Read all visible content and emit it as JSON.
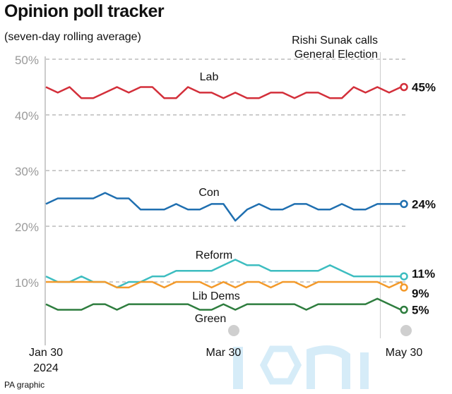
{
  "header": {
    "title": "Opinion poll tracker",
    "subtitle": "(seven-day rolling average)",
    "credit": "PA graphic"
  },
  "chart_data": {
    "type": "line",
    "title": "Opinion poll tracker",
    "subtitle": "(seven-day rolling average)",
    "ylim": [
      0,
      50
    ],
    "yticks": [
      "50%",
      "40%",
      "30%",
      "20%",
      "10%"
    ],
    "ytick_values": [
      50,
      40,
      30,
      20,
      10
    ],
    "xticks": [
      {
        "label": "Jan 30",
        "sublabel": "2024",
        "date": "2024-01-30"
      },
      {
        "label": "Mar 30",
        "date": "2024-03-30"
      },
      {
        "label": "May 30",
        "date": "2024-05-30"
      }
    ],
    "grid": true,
    "annotation": {
      "date": "2024-05-22",
      "text_line1": "Rishi Sunak calls",
      "text_line2": "General Election"
    },
    "x": [
      "2024-01-30",
      "2024-02-03",
      "2024-02-07",
      "2024-02-11",
      "2024-02-15",
      "2024-02-19",
      "2024-02-23",
      "2024-02-27",
      "2024-03-02",
      "2024-03-06",
      "2024-03-10",
      "2024-03-14",
      "2024-03-18",
      "2024-03-22",
      "2024-03-26",
      "2024-03-30",
      "2024-04-03",
      "2024-04-07",
      "2024-04-11",
      "2024-04-15",
      "2024-04-19",
      "2024-04-23",
      "2024-04-27",
      "2024-05-01",
      "2024-05-05",
      "2024-05-09",
      "2024-05-13",
      "2024-05-17",
      "2024-05-21",
      "2024-05-25",
      "2024-05-29",
      "2024-05-30"
    ],
    "series": [
      {
        "name": "Lab",
        "end_label": "45%",
        "color": "#d32f3a",
        "values": [
          45,
          44,
          45,
          43,
          43,
          44,
          45,
          44,
          45,
          45,
          43,
          43,
          45,
          44,
          44,
          43,
          44,
          43,
          43,
          44,
          44,
          43,
          44,
          44,
          43,
          43,
          45,
          44,
          45,
          44,
          45,
          45
        ]
      },
      {
        "name": "Con",
        "end_label": "24%",
        "color": "#1f6fb0",
        "values": [
          24,
          25,
          25,
          25,
          25,
          26,
          25,
          25,
          23,
          23,
          23,
          24,
          23,
          23,
          24,
          24,
          21,
          23,
          24,
          23,
          23,
          24,
          24,
          23,
          23,
          24,
          23,
          23,
          24,
          24,
          24,
          24
        ]
      },
      {
        "name": "Reform",
        "end_label": "11%",
        "color": "#3dbdc0",
        "values": [
          11,
          10,
          10,
          11,
          10,
          10,
          9,
          10,
          10,
          11,
          11,
          12,
          12,
          12,
          12,
          13,
          14,
          13,
          13,
          12,
          12,
          12,
          12,
          12,
          13,
          12,
          11,
          11,
          11,
          11,
          11,
          11
        ]
      },
      {
        "name": "Lib Dems",
        "end_label": "9%",
        "color": "#f39a2b",
        "values": [
          10,
          10,
          10,
          10,
          10,
          10,
          9,
          9,
          10,
          10,
          9,
          10,
          10,
          10,
          9,
          10,
          9,
          10,
          10,
          9,
          10,
          10,
          9,
          10,
          10,
          10,
          10,
          10,
          10,
          9,
          10,
          9
        ]
      },
      {
        "name": "Green",
        "end_label": "5%",
        "color": "#2e7d3e",
        "values": [
          6,
          5,
          5,
          5,
          6,
          6,
          5,
          6,
          6,
          6,
          6,
          6,
          6,
          5,
          5,
          6,
          5,
          6,
          6,
          6,
          6,
          6,
          5,
          6,
          6,
          6,
          6,
          6,
          7,
          6,
          5,
          5
        ]
      }
    ]
  },
  "watermark": "iconic"
}
